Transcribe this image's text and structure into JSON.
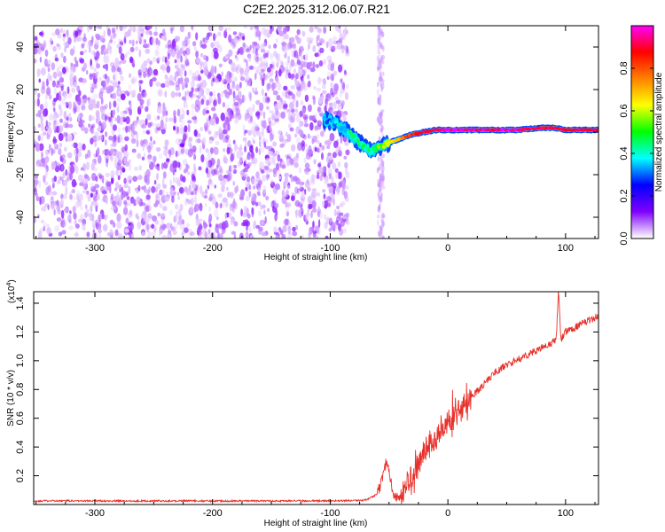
{
  "title": "C2E2.2025.312.06.07.R21",
  "chart_data": [
    {
      "type": "heatmap",
      "name": "spectrogram",
      "xlabel": "Height of straight line (km)",
      "ylabel": "Frequency (Hz)",
      "xlim": [
        -352,
        128
      ],
      "ylim": [
        -50,
        50
      ],
      "xticks": [
        -300,
        -200,
        -100,
        0,
        100
      ],
      "yticks": [
        -40,
        -20,
        0,
        20,
        40
      ],
      "colorbar": {
        "label": "Normalized spectral amplitude",
        "range": [
          0.0,
          1.0
        ],
        "ticks": [
          "0.0",
          "0.2",
          "0.4",
          "0.6",
          "0.8"
        ],
        "colors": [
          "#ffffff",
          "#8000ff",
          "#0000ff",
          "#00ffff",
          "#00ff00",
          "#ffff00",
          "#ff8000",
          "#ff0000",
          "#ff00ff"
        ]
      },
      "noise_region": {
        "x_range": [
          -352,
          -95
        ],
        "amplitude_range": [
          0.02,
          0.12
        ]
      },
      "noise_column": {
        "x": -57,
        "amplitude_range": [
          0.0,
          0.05
        ]
      },
      "signal_track": {
        "x": [
          -105,
          -95,
          -85,
          -75,
          -65,
          -57,
          -50,
          -40,
          -30,
          -20,
          -10,
          0,
          20,
          40,
          60,
          80,
          90,
          100,
          128
        ],
        "frequency": [
          6,
          4,
          0,
          -5,
          -9,
          -7,
          -5,
          -3,
          -1,
          0,
          1,
          1,
          1,
          1,
          1,
          2,
          2,
          1,
          1
        ],
        "amplitude": [
          0.3,
          0.35,
          0.4,
          0.45,
          0.4,
          0.55,
          0.6,
          0.75,
          0.85,
          0.9,
          0.9,
          0.95,
          0.95,
          0.95,
          0.95,
          0.9,
          0.9,
          0.9,
          0.9
        ]
      }
    },
    {
      "type": "line",
      "name": "snr",
      "xlabel": "Height of straight line (km)",
      "ylabel": "SNR (10 * v/v)",
      "yscale_label": "(x10",
      "yscale_exponent": "4",
      "xlim": [
        -352,
        128
      ],
      "ylim": [
        0,
        1.48
      ],
      "xticks": [
        -300,
        -200,
        -100,
        0,
        100
      ],
      "yticks": [
        "0.2",
        "0.4",
        "0.6",
        "0.8",
        "1.0",
        "1.2",
        "1.4"
      ],
      "color": "#e8302a",
      "series": {
        "x": [
          -352,
          -300,
          -200,
          -100,
          -70,
          -60,
          -55,
          -52,
          -48,
          -45,
          -40,
          -35,
          -30,
          -25,
          -20,
          -15,
          -10,
          -5,
          0,
          5,
          10,
          20,
          30,
          40,
          50,
          60,
          70,
          80,
          88,
          92,
          94,
          96,
          100,
          110,
          120,
          128
        ],
        "y": [
          0.025,
          0.025,
          0.025,
          0.025,
          0.03,
          0.07,
          0.2,
          0.32,
          0.14,
          0.05,
          0.06,
          0.12,
          0.2,
          0.3,
          0.36,
          0.42,
          0.48,
          0.53,
          0.58,
          0.62,
          0.68,
          0.75,
          0.83,
          0.92,
          0.97,
          1.01,
          1.05,
          1.09,
          1.12,
          1.15,
          1.48,
          1.15,
          1.2,
          1.24,
          1.28,
          1.31
        ]
      }
    }
  ]
}
